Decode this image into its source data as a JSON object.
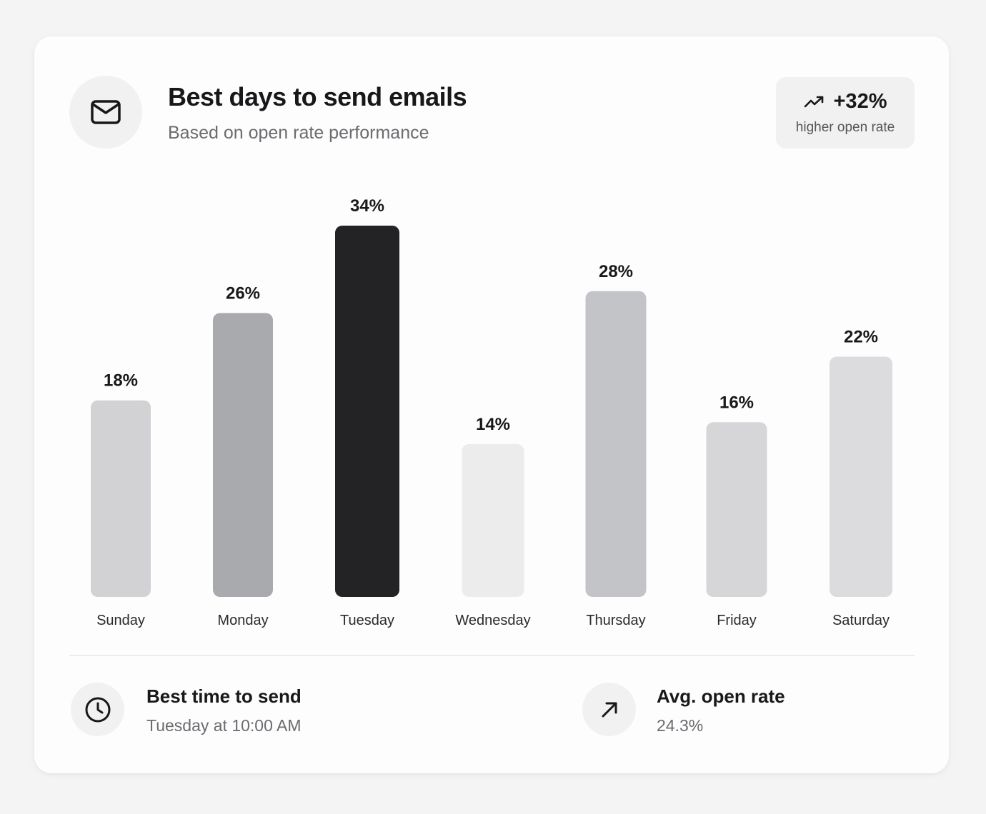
{
  "header": {
    "icon": "mail-icon",
    "title": "Best days to send emails",
    "subtitle": "Based on open rate performance"
  },
  "badge": {
    "icon": "trending-up-icon",
    "value": "+32%",
    "label": "higher open rate"
  },
  "chart_data": {
    "type": "bar",
    "title": "Best days to send emails",
    "subtitle": "Based on open rate performance",
    "xlabel": "",
    "ylabel": "",
    "ylim": [
      0,
      34
    ],
    "grid": false,
    "categories": [
      "Sunday",
      "Monday",
      "Tuesday",
      "Wednesday",
      "Thursday",
      "Friday",
      "Saturday"
    ],
    "values": [
      18,
      26,
      34,
      14,
      28,
      16,
      22
    ],
    "value_labels": [
      "18%",
      "26%",
      "34%",
      "14%",
      "28%",
      "16%",
      "22%"
    ],
    "colors": [
      "#d2d2d4",
      "#a9aaad",
      "#232326",
      "#ececed",
      "#c3c4c7",
      "#d6d6d8",
      "#dcdcde"
    ],
    "highlight": "Tuesday"
  },
  "stats": [
    {
      "icon": "clock-icon",
      "title": "Best time to send",
      "value": "Tuesday at 10:00 AM"
    },
    {
      "icon": "arrow-up-right-icon",
      "title": "Avg. open rate",
      "value": "24.3%"
    }
  ]
}
